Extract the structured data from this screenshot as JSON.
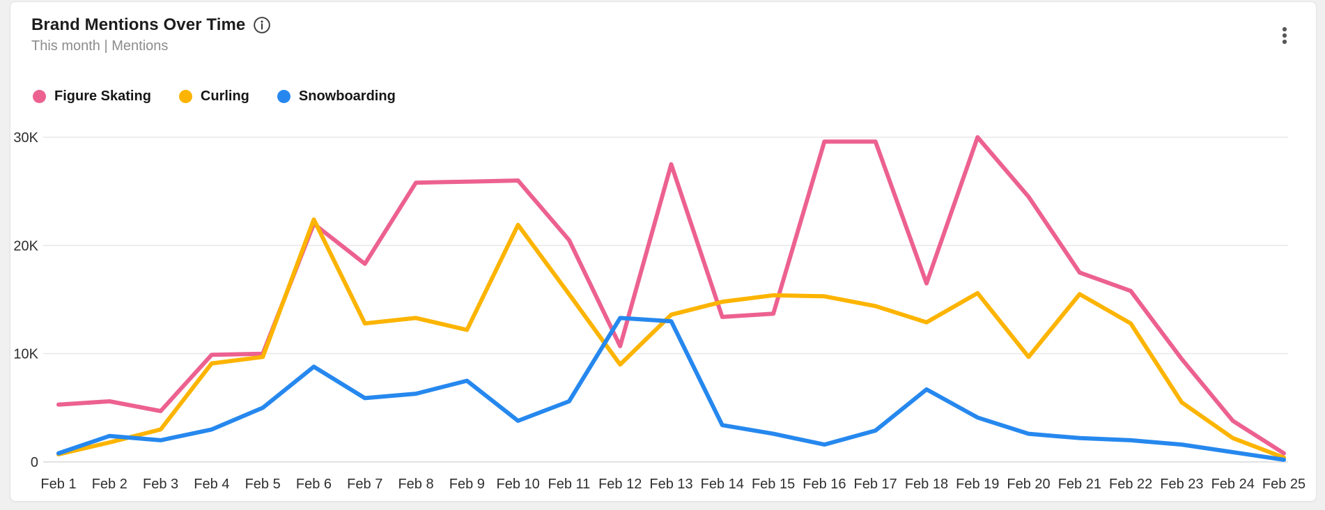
{
  "header": {
    "title": "Brand Mentions Over Time",
    "subtitle": "This month | Mentions",
    "info_icon": "info-icon",
    "menu_icon": "kebab-menu-icon"
  },
  "colors": {
    "figure_skating": "#ec6190",
    "curling": "#fcb400",
    "snowboarding": "#2688ee",
    "gridline": "#e8e8e8",
    "zero_line": "#d8d8d8",
    "axis_text": "#2e2e2e"
  },
  "chart_data": {
    "type": "line",
    "title": "Brand Mentions Over Time",
    "period": "This month",
    "metric": "Mentions",
    "legend_position": "top-left",
    "grid": "horizontal",
    "ylim": [
      0,
      30000
    ],
    "y_tick_labels": [
      "30K",
      "20K",
      "10K",
      "0"
    ],
    "y_tick_values": [
      30000,
      20000,
      10000,
      0
    ],
    "x_labels": [
      "Feb 1",
      "Feb 2",
      "Feb 3",
      "Feb 4",
      "Feb 5",
      "Feb 6",
      "Feb 7",
      "Feb 8",
      "Feb 9",
      "Feb 10",
      "Feb 11",
      "Feb 12",
      "Feb 13",
      "Feb 14",
      "Feb 15",
      "Feb 16",
      "Feb 17",
      "Feb 18",
      "Feb 19",
      "Feb 20",
      "Feb 21",
      "Feb 22",
      "Feb 23",
      "Feb 24",
      "Feb 25"
    ],
    "series": [
      {
        "name": "Figure Skating",
        "color": "#ec6190",
        "values": [
          5300,
          5600,
          4700,
          9900,
          10000,
          22000,
          18300,
          25800,
          25900,
          26000,
          20500,
          10700,
          27500,
          13400,
          13700,
          29600,
          29600,
          16500,
          30000,
          24500,
          17500,
          15800,
          9500,
          3800,
          800
        ]
      },
      {
        "name": "Curling",
        "color": "#fcb400",
        "values": [
          700,
          1800,
          3000,
          9100,
          9700,
          22400,
          12800,
          13300,
          12200,
          21900,
          15500,
          9000,
          13600,
          14800,
          15400,
          15300,
          14400,
          12900,
          15600,
          9700,
          15500,
          12800,
          5500,
          2200,
          400
        ]
      },
      {
        "name": "Snowboarding",
        "color": "#2688ee",
        "values": [
          800,
          2400,
          2000,
          3000,
          5000,
          8800,
          5900,
          6300,
          7500,
          3800,
          5600,
          13300,
          13000,
          3400,
          2600,
          1600,
          2900,
          6700,
          4100,
          2600,
          2200,
          2000,
          1600,
          900,
          200
        ]
      }
    ]
  }
}
